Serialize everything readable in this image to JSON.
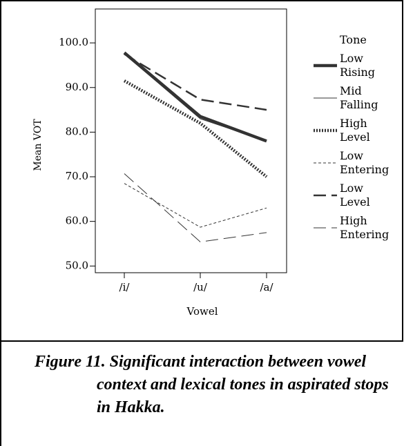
{
  "chart_data": {
    "type": "line",
    "categories": [
      "/i/",
      "/u/",
      "/a/"
    ],
    "x_label": "Vowel",
    "y_label": "Mean VOT",
    "legend_title": "Tone",
    "ylim": [
      48.5,
      107.6
    ],
    "yticks": [
      {
        "value": 50,
        "label": "50.0"
      },
      {
        "value": 60,
        "label": "60.0"
      },
      {
        "value": 70,
        "label": "70.0"
      },
      {
        "value": 80,
        "label": "80.0"
      },
      {
        "value": 90,
        "label": "90.0"
      },
      {
        "value": 100,
        "label": "100.0"
      }
    ],
    "series": [
      {
        "name": "Low Rising",
        "color": "#333333",
        "values": [
          97.8,
          83.5,
          78.0
        ]
      },
      {
        "name": "Mid Falling",
        "color": "#333333",
        "values": [
          97.5,
          83.0,
          78.0
        ]
      },
      {
        "name": "High Level",
        "color": "#333333",
        "values": [
          91.5,
          82.0,
          70.0
        ]
      },
      {
        "name": "Low Entering",
        "color": "#333333",
        "values": [
          68.5,
          58.7,
          63.0
        ]
      },
      {
        "name": "Low Level",
        "color": "#333333",
        "values": [
          97.5,
          87.3,
          85.0
        ]
      },
      {
        "name": "High Entering",
        "color": "#333333",
        "values": [
          70.7,
          55.4,
          57.5
        ]
      }
    ]
  },
  "caption": "Figure 11. Significant interaction between vowel context and lexical tones in aspirated stops in Hakka."
}
